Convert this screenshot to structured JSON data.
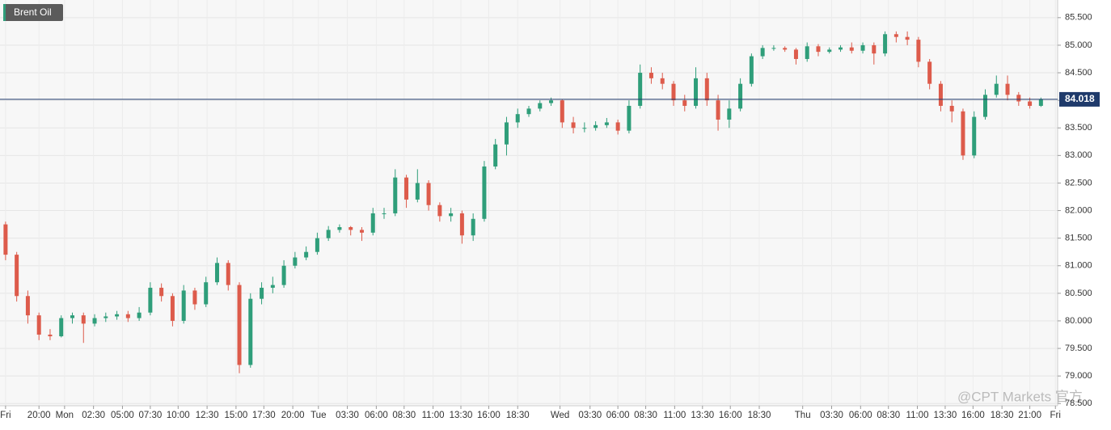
{
  "chart_data": {
    "type": "candlestick",
    "title": "Brent Oil",
    "watermark": "@CPT Markets 官方",
    "last_price": 84.018,
    "up_color": "#2f9e7a",
    "down_color": "#dd5b4b",
    "grid": true,
    "xlim": [
      0,
      95
    ],
    "ylim": [
      78.46,
      85.82
    ],
    "yticks": [
      {
        "value": 78.5,
        "label": "78.500"
      },
      {
        "value": 79,
        "label": "79.000"
      },
      {
        "value": 79.5,
        "label": "79.500"
      },
      {
        "value": 80,
        "label": "80.000"
      },
      {
        "value": 80.5,
        "label": "80.500"
      },
      {
        "value": 81,
        "label": "81.000"
      },
      {
        "value": 81.5,
        "label": "81.500"
      },
      {
        "value": 82,
        "label": "82.000"
      },
      {
        "value": 82.5,
        "label": "82.500"
      },
      {
        "value": 83,
        "label": "83.000"
      },
      {
        "value": 83.5,
        "label": "83.500"
      },
      {
        "value": 84,
        "label": "84.000"
      },
      {
        "value": 84.5,
        "label": "84.500"
      },
      {
        "value": 85,
        "label": "85.000"
      },
      {
        "value": 85.5,
        "label": "85.500"
      }
    ],
    "xticks": [
      {
        "value": 0.5,
        "label": "Fri"
      },
      {
        "value": 3.5,
        "label": "20:00"
      },
      {
        "value": 5.8,
        "label": "Mon"
      },
      {
        "value": 8.4,
        "label": "02:30"
      },
      {
        "value": 11.0,
        "label": "05:00"
      },
      {
        "value": 13.5,
        "label": "07:30"
      },
      {
        "value": 16.0,
        "label": "10:00"
      },
      {
        "value": 18.6,
        "label": "12:30"
      },
      {
        "value": 21.2,
        "label": "15:00"
      },
      {
        "value": 23.7,
        "label": "17:30"
      },
      {
        "value": 26.3,
        "label": "20:00"
      },
      {
        "value": 28.6,
        "label": "Tue"
      },
      {
        "value": 31.2,
        "label": "03:30"
      },
      {
        "value": 33.8,
        "label": "06:00"
      },
      {
        "value": 36.3,
        "label": "08:30"
      },
      {
        "value": 38.9,
        "label": "11:00"
      },
      {
        "value": 41.4,
        "label": "13:30"
      },
      {
        "value": 43.9,
        "label": "16:00"
      },
      {
        "value": 46.5,
        "label": "18:30"
      },
      {
        "value": 50.3,
        "label": "Wed"
      },
      {
        "value": 53.0,
        "label": "03:30"
      },
      {
        "value": 55.5,
        "label": "06:00"
      },
      {
        "value": 58.0,
        "label": "08:30"
      },
      {
        "value": 60.6,
        "label": "11:00"
      },
      {
        "value": 63.1,
        "label": "13:30"
      },
      {
        "value": 65.6,
        "label": "16:00"
      },
      {
        "value": 68.2,
        "label": "18:30"
      },
      {
        "value": 72.1,
        "label": "Thu"
      },
      {
        "value": 74.7,
        "label": "03:30"
      },
      {
        "value": 77.3,
        "label": "06:00"
      },
      {
        "value": 79.8,
        "label": "08:30"
      },
      {
        "value": 82.4,
        "label": "11:00"
      },
      {
        "value": 84.9,
        "label": "13:30"
      },
      {
        "value": 87.4,
        "label": "16:00"
      },
      {
        "value": 90.0,
        "label": "18:30"
      },
      {
        "value": 92.5,
        "label": "21:00"
      },
      {
        "value": 94.8,
        "label": "Fri"
      }
    ],
    "x": [
      0.5,
      1.5,
      2.5,
      3.5,
      4.5,
      5.5,
      6.5,
      7.5,
      8.5,
      9.5,
      10.5,
      11.5,
      12.5,
      13.5,
      14.5,
      15.5,
      16.5,
      17.5,
      18.5,
      19.5,
      20.5,
      21.5,
      22.5,
      23.5,
      24.5,
      25.5,
      26.5,
      27.5,
      28.5,
      29.5,
      30.5,
      31.5,
      32.5,
      33.5,
      34.5,
      35.5,
      36.5,
      37.5,
      38.5,
      39.5,
      40.5,
      41.5,
      42.5,
      43.5,
      44.5,
      45.5,
      46.5,
      47.5,
      48.5,
      49.5,
      50.5,
      51.5,
      52.5,
      53.5,
      54.5,
      55.5,
      56.5,
      57.5,
      58.5,
      59.5,
      60.5,
      61.5,
      62.5,
      63.5,
      64.5,
      65.5,
      66.5,
      67.5,
      68.5,
      69.5,
      70.5,
      71.5,
      72.5,
      73.5,
      74.5,
      75.5,
      76.5,
      77.5,
      78.5,
      79.5,
      80.5,
      81.5,
      82.5,
      83.5,
      84.5,
      85.5,
      86.5,
      87.5,
      88.5,
      89.5,
      90.5,
      91.5,
      92.5,
      93.5
    ],
    "open": [
      81.75,
      81.2,
      80.45,
      80.1,
      79.75,
      79.72,
      80.05,
      80.1,
      79.95,
      80.05,
      80.08,
      80.12,
      80.05,
      80.15,
      80.6,
      80.45,
      80.0,
      80.55,
      80.3,
      80.7,
      81.05,
      80.65,
      79.2,
      80.4,
      80.6,
      80.65,
      81.0,
      81.15,
      81.25,
      81.5,
      81.65,
      81.7,
      81.65,
      81.6,
      81.95,
      81.95,
      82.6,
      82.2,
      82.5,
      82.1,
      81.9,
      81.95,
      81.55,
      81.85,
      82.8,
      83.2,
      83.6,
      83.75,
      83.85,
      83.95,
      84.0,
      83.6,
      83.5,
      83.5,
      83.55,
      83.6,
      83.45,
      83.9,
      84.5,
      84.4,
      84.3,
      84.0,
      83.9,
      84.4,
      84.0,
      83.65,
      83.85,
      84.3,
      84.8,
      84.95,
      84.95,
      84.92,
      84.75,
      84.98,
      84.88,
      84.92,
      84.96,
      84.9,
      85.0,
      84.85,
      85.2,
      85.15,
      85.1,
      84.7,
      84.3,
      83.9,
      83.8,
      83.0,
      83.7,
      84.1,
      84.3,
      84.1,
      83.98,
      83.9
    ],
    "high": [
      81.8,
      81.25,
      80.55,
      80.15,
      79.85,
      80.1,
      80.15,
      80.15,
      80.12,
      80.15,
      80.18,
      80.18,
      80.25,
      80.7,
      80.68,
      80.5,
      80.65,
      80.6,
      80.8,
      81.15,
      81.1,
      80.7,
      80.5,
      80.7,
      80.8,
      81.1,
      81.25,
      81.35,
      81.6,
      81.72,
      81.75,
      81.72,
      81.7,
      82.05,
      82.05,
      82.75,
      82.65,
      82.75,
      82.55,
      82.15,
      82.05,
      82.0,
      81.95,
      82.9,
      83.3,
      83.7,
      83.85,
      83.9,
      84.0,
      84.05,
      84.02,
      83.7,
      83.6,
      83.62,
      83.68,
      83.65,
      84.0,
      84.65,
      84.6,
      84.5,
      84.35,
      84.1,
      84.6,
      84.5,
      84.1,
      84.0,
      84.4,
      84.85,
      85.0,
      85.0,
      84.98,
      84.95,
      85.05,
      85.02,
      84.96,
      85.0,
      85.05,
      85.05,
      85.05,
      85.25,
      85.25,
      85.25,
      85.15,
      84.75,
      84.35,
      84.0,
      83.85,
      83.8,
      84.2,
      84.45,
      84.45,
      84.15,
      84.05,
      84.05
    ],
    "low": [
      81.1,
      80.35,
      79.95,
      79.65,
      79.65,
      79.7,
      79.95,
      79.6,
      79.9,
      79.98,
      80.02,
      79.98,
      80.0,
      80.1,
      80.35,
      79.9,
      79.95,
      80.2,
      80.25,
      80.65,
      80.55,
      79.05,
      79.15,
      80.3,
      80.5,
      80.6,
      80.95,
      81.1,
      81.2,
      81.45,
      81.6,
      81.55,
      81.45,
      81.55,
      81.85,
      81.9,
      82.05,
      82.15,
      82.0,
      81.8,
      81.8,
      81.4,
      81.45,
      81.8,
      82.75,
      83.0,
      83.5,
      83.7,
      83.8,
      83.9,
      83.5,
      83.4,
      83.42,
      83.45,
      83.5,
      83.38,
      83.4,
      83.85,
      84.3,
      84.2,
      83.9,
      83.8,
      83.85,
      83.9,
      83.45,
      83.5,
      83.8,
      84.25,
      84.75,
      84.9,
      84.88,
      84.65,
      84.7,
      84.8,
      84.85,
      84.88,
      84.85,
      84.85,
      84.65,
      84.8,
      85.05,
      85.0,
      84.6,
      84.2,
      83.8,
      83.6,
      82.92,
      82.95,
      83.65,
      84.05,
      84.0,
      83.9,
      83.85,
      83.88
    ],
    "close": [
      81.2,
      80.45,
      80.1,
      79.75,
      79.72,
      80.05,
      80.1,
      79.95,
      80.05,
      80.08,
      80.12,
      80.05,
      80.15,
      80.6,
      80.45,
      80.0,
      80.55,
      80.3,
      80.7,
      81.05,
      80.65,
      79.2,
      80.4,
      80.6,
      80.65,
      81.0,
      81.15,
      81.25,
      81.5,
      81.65,
      81.7,
      81.65,
      81.6,
      81.95,
      81.95,
      82.6,
      82.2,
      82.5,
      82.1,
      81.9,
      81.95,
      81.55,
      81.85,
      82.8,
      83.2,
      83.6,
      83.75,
      83.85,
      83.95,
      84.0,
      83.6,
      83.5,
      83.5,
      83.55,
      83.6,
      83.45,
      83.9,
      84.5,
      84.4,
      84.3,
      84.0,
      83.9,
      84.4,
      84.0,
      83.65,
      83.85,
      84.3,
      84.8,
      84.95,
      84.95,
      84.92,
      84.75,
      84.98,
      84.88,
      84.92,
      84.96,
      84.9,
      85.0,
      84.85,
      85.2,
      85.15,
      85.1,
      84.7,
      84.3,
      83.9,
      83.8,
      83.0,
      83.7,
      84.1,
      84.3,
      84.1,
      83.98,
      83.9,
      84.02
    ]
  }
}
